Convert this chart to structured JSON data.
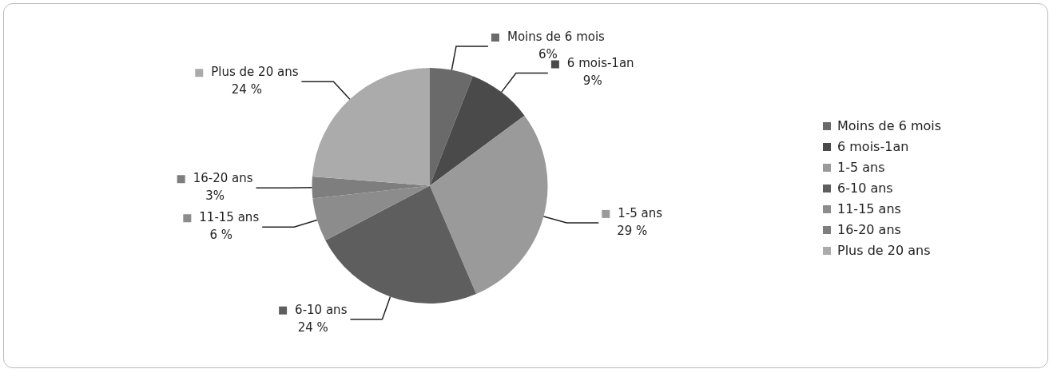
{
  "chart_data": {
    "type": "pie",
    "categories": [
      "Moins de 6 mois",
      "6 mois-1an",
      "1-5 ans",
      "6-10 ans",
      "11-15 ans",
      "16-20 ans",
      "Plus de 20 ans"
    ],
    "values": [
      6,
      9,
      29,
      24,
      6,
      3,
      24
    ],
    "value_labels": [
      "6%",
      "9%",
      "29 %",
      "24 %",
      "6 %",
      "3%",
      "24 %"
    ],
    "colors": [
      "#6a6a6a",
      "#4a4a4a",
      "#9a9a9a",
      "#5e5e5e",
      "#8c8c8c",
      "#7e7e7e",
      "#ababab"
    ],
    "legend": "right"
  }
}
